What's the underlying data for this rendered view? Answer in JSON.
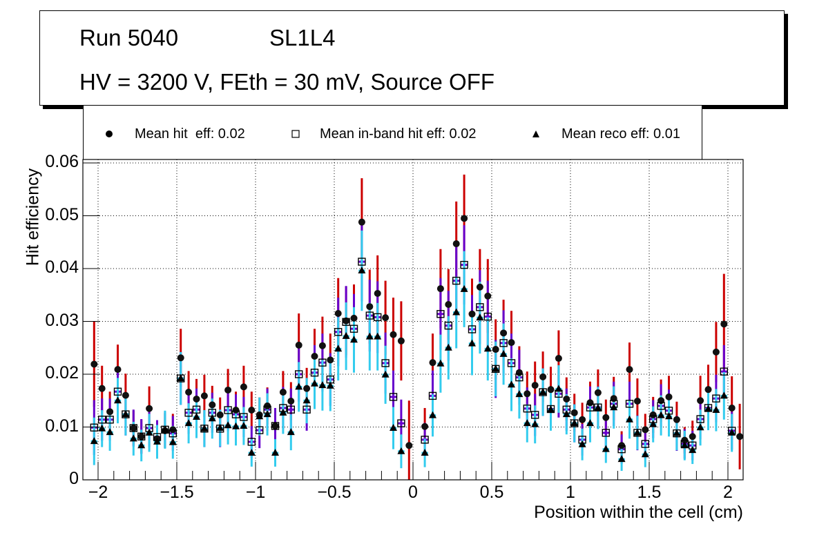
{
  "title_box": {
    "line1_left": "Run 5040",
    "line1_right": "SL1L4",
    "line2": "HV = 3200 V, FEth = 30 mV, Source OFF"
  },
  "legend": {
    "entries": [
      {
        "marker": "filled-circle",
        "label": "Mean hit  eff: 0.02"
      },
      {
        "marker": "open-square",
        "label": "Mean in-band hit eff: 0.02"
      },
      {
        "marker": "filled-triangle",
        "label": "Mean reco eff: 0.01"
      }
    ]
  },
  "colors": {
    "hit_error": "#cc0000",
    "inband_error": "#6600cc",
    "reco_error": "#33ccee",
    "marker": "#000000",
    "grid": "#000000"
  },
  "chart_data": {
    "type": "scatter",
    "title": "",
    "xlabel": "Position within the cell (cm)",
    "ylabel": "Hit efficiency",
    "xlim": [
      -2.1,
      2.1
    ],
    "ylim": [
      0,
      0.0605
    ],
    "grid": true,
    "legend_position": "top",
    "x_ticks": [
      -2,
      -1.5,
      -1,
      -0.5,
      0,
      0.5,
      1,
      1.5,
      2
    ],
    "x_tick_labels": [
      "−2",
      "−1.5",
      "−1",
      "−0.5",
      "0",
      "0.5",
      "1",
      "1.5",
      "2"
    ],
    "y_ticks": [
      0,
      0.01,
      0.02,
      0.03,
      0.04,
      0.05,
      0.06
    ],
    "y_tick_labels": [
      "0",
      "0.01",
      "0.02",
      "0.03",
      "0.04",
      "0.05",
      "0.06"
    ],
    "x": [
      -2.025,
      -1.975,
      -1.925,
      -1.875,
      -1.825,
      -1.775,
      -1.725,
      -1.675,
      -1.625,
      -1.575,
      -1.525,
      -1.475,
      -1.425,
      -1.375,
      -1.325,
      -1.275,
      -1.225,
      -1.175,
      -1.125,
      -1.075,
      -1.025,
      -0.975,
      -0.925,
      -0.875,
      -0.825,
      -0.775,
      -0.725,
      -0.675,
      -0.625,
      -0.575,
      -0.525,
      -0.475,
      -0.425,
      -0.375,
      -0.325,
      -0.275,
      -0.225,
      -0.175,
      -0.125,
      -0.075,
      -0.025,
      0.075,
      0.125,
      0.175,
      0.225,
      0.275,
      0.325,
      0.375,
      0.425,
      0.475,
      0.525,
      0.575,
      0.625,
      0.675,
      0.725,
      0.775,
      0.825,
      0.875,
      0.925,
      0.975,
      1.025,
      1.075,
      1.125,
      1.175,
      1.225,
      1.275,
      1.325,
      1.375,
      1.425,
      1.475,
      1.525,
      1.575,
      1.625,
      1.675,
      1.725,
      1.775,
      1.825,
      1.875,
      1.925,
      1.975,
      2.025,
      2.075
    ],
    "series": [
      {
        "name": "Mean hit  eff: 0.02",
        "marker": "filled-circle",
        "values": [
          0.0219,
          0.0173,
          0.0129,
          0.0209,
          0.016,
          0.0098,
          0.0082,
          0.0135,
          0.0078,
          0.0093,
          0.0095,
          0.0231,
          0.0166,
          0.0153,
          0.0159,
          0.0142,
          0.0123,
          0.017,
          0.0132,
          0.0176,
          0.0132,
          0.0123,
          0.014,
          0.0102,
          0.0166,
          0.0149,
          0.0255,
          0.0173,
          0.0234,
          0.0254,
          0.0227,
          0.0315,
          0.0301,
          0.0306,
          0.0488,
          0.0328,
          0.0353,
          0.0307,
          0.0275,
          0.0263,
          0.0065,
          0.0101,
          0.0222,
          0.0362,
          0.0332,
          0.0447,
          0.0495,
          0.0314,
          0.0365,
          0.0348,
          0.0247,
          0.0278,
          0.026,
          0.0203,
          0.0163,
          0.0179,
          0.0195,
          0.0171,
          0.023,
          0.0153,
          0.0127,
          0.0114,
          0.0146,
          0.0165,
          0.0118,
          0.0154,
          0.0065,
          0.0209,
          0.0149,
          0.0095,
          0.0123,
          0.015,
          0.0157,
          0.0114,
          0.0075,
          0.0082,
          0.015,
          0.0171,
          0.0242,
          0.0295,
          0.0136,
          0.0082
        ],
        "errors": [
          0.0081,
          0.0043,
          0.0038,
          0.0047,
          0.0041,
          0.0033,
          0.0032,
          0.0042,
          0.003,
          0.0033,
          0.003,
          0.0055,
          0.004,
          0.0038,
          0.004,
          0.0036,
          0.0033,
          0.004,
          0.0035,
          0.004,
          0.0035,
          0.0033,
          0.0035,
          0.003,
          0.004,
          0.0036,
          0.006,
          0.0039,
          0.0052,
          0.0055,
          0.005,
          0.0067,
          0.0065,
          0.0064,
          0.0083,
          0.007,
          0.0072,
          0.007,
          0.007,
          0.0075,
          0.0085,
          0.0035,
          0.0055,
          0.0075,
          0.0067,
          0.008,
          0.0083,
          0.0067,
          0.0072,
          0.007,
          0.0057,
          0.0063,
          0.006,
          0.005,
          0.0042,
          0.0045,
          0.0048,
          0.0043,
          0.0053,
          0.0041,
          0.0036,
          0.0032,
          0.004,
          0.0044,
          0.0034,
          0.0041,
          0.0027,
          0.0051,
          0.0043,
          0.003,
          0.0034,
          0.004,
          0.004,
          0.0034,
          0.0025,
          0.003,
          0.0047,
          0.0047,
          0.0057,
          0.0095,
          0.006,
          0.0062
        ]
      },
      {
        "name": "Mean in-band hit eff: 0.02",
        "marker": "open-square",
        "values": [
          0.0099,
          0.0114,
          0.0114,
          0.0167,
          0.0124,
          0.0098,
          0.0082,
          0.0098,
          0.0081,
          0.0095,
          0.0088,
          0.0192,
          0.0127,
          0.0133,
          0.0097,
          0.0127,
          0.0097,
          0.0132,
          0.0124,
          0.0119,
          0.0072,
          0.0094,
          0.0133,
          0.0102,
          0.0136,
          0.0133,
          0.02,
          0.0133,
          0.0203,
          0.0222,
          0.019,
          0.028,
          0.0299,
          0.0286,
          0.0413,
          0.0311,
          0.0308,
          0.0221,
          0.0157,
          0.0107,
          null,
          0.0076,
          0.0159,
          0.0314,
          0.0292,
          0.0377,
          0.0407,
          0.0285,
          0.0327,
          0.0309,
          0.021,
          0.0259,
          0.0221,
          0.0194,
          0.0135,
          0.0123,
          0.0166,
          0.0134,
          0.0163,
          0.0133,
          0.0107,
          0.0076,
          0.0137,
          0.0137,
          0.0089,
          0.0144,
          0.0058,
          0.0144,
          0.0089,
          0.0068,
          0.0115,
          0.014,
          0.0131,
          0.0088,
          0.0068,
          0.0065,
          0.0115,
          0.0136,
          0.0154,
          0.0205,
          0.0093,
          null
        ],
        "errors": [
          0.0052,
          0.004,
          0.004,
          0.0045,
          0.004,
          0.0035,
          0.0033,
          0.0036,
          0.0032,
          0.0034,
          0.0033,
          0.005,
          0.004,
          0.004,
          0.0035,
          0.0038,
          0.0035,
          0.004,
          0.0038,
          0.0038,
          0.003,
          0.0034,
          0.004,
          0.0034,
          0.004,
          0.004,
          0.0052,
          0.004,
          0.0052,
          0.0055,
          0.005,
          0.0065,
          0.0068,
          0.0066,
          0.0075,
          0.0068,
          0.0068,
          0.0058,
          0.005,
          0.0045,
          null,
          0.0032,
          0.0048,
          0.0068,
          0.0066,
          0.0072,
          0.0075,
          0.0065,
          0.007,
          0.0068,
          0.0055,
          0.0062,
          0.0056,
          0.0052,
          0.004,
          0.004,
          0.0045,
          0.004,
          0.0045,
          0.004,
          0.0036,
          0.003,
          0.004,
          0.004,
          0.0033,
          0.0042,
          0.0028,
          0.0042,
          0.0033,
          0.0028,
          0.0036,
          0.0041,
          0.004,
          0.0033,
          0.0028,
          0.0028,
          0.0038,
          0.004,
          0.0045,
          0.005,
          0.0036,
          null
        ]
      },
      {
        "name": "Mean reco eff: 0.01",
        "marker": "filled-triangle",
        "values": [
          0.0073,
          0.0097,
          0.009,
          0.015,
          0.0124,
          0.0078,
          0.0065,
          0.0089,
          0.0072,
          0.0095,
          0.0071,
          0.0192,
          0.0107,
          0.0119,
          0.0097,
          0.0116,
          0.0098,
          0.0103,
          0.0101,
          0.0102,
          0.0051,
          0.012,
          0.0124,
          0.0051,
          0.0127,
          0.009,
          0.0176,
          0.015,
          0.0182,
          0.0179,
          0.0178,
          0.0248,
          0.0272,
          0.0265,
          0.0396,
          0.0271,
          0.0271,
          0.0199,
          0.0098,
          0.0054,
          null,
          0.0051,
          0.0122,
          0.022,
          0.025,
          0.0317,
          0.0361,
          0.0258,
          0.0307,
          0.0248,
          0.021,
          0.0238,
          0.018,
          0.0162,
          0.0107,
          0.0105,
          0.0166,
          0.0133,
          0.0172,
          0.0124,
          0.0107,
          0.0067,
          0.0107,
          0.0136,
          0.0058,
          0.0137,
          0.0039,
          0.0114,
          0.0089,
          0.0048,
          0.0105,
          0.0122,
          0.012,
          0.0088,
          0.0065,
          0.0056,
          0.0099,
          0.0134,
          0.0132,
          0.0159,
          0.0089,
          null
        ],
        "errors": [
          0.0045,
          0.0035,
          0.0035,
          0.0043,
          0.004,
          0.0032,
          0.003,
          0.0036,
          0.0032,
          0.0036,
          0.0031,
          0.005,
          0.0038,
          0.004,
          0.0035,
          0.0038,
          0.0035,
          0.0036,
          0.0036,
          0.0036,
          0.0026,
          0.0036,
          0.004,
          0.0026,
          0.004,
          0.0034,
          0.0047,
          0.0043,
          0.0048,
          0.0048,
          0.0048,
          0.006,
          0.0064,
          0.0062,
          0.0076,
          0.0064,
          0.0064,
          0.0055,
          0.004,
          0.0032,
          null,
          0.0027,
          0.004,
          0.0055,
          0.006,
          0.0068,
          0.0072,
          0.006,
          0.0068,
          0.006,
          0.0052,
          0.0058,
          0.005,
          0.0046,
          0.0036,
          0.0036,
          0.0045,
          0.004,
          0.0045,
          0.0038,
          0.0036,
          0.003,
          0.0036,
          0.004,
          0.0026,
          0.004,
          0.0022,
          0.0036,
          0.0032,
          0.0024,
          0.0034,
          0.0038,
          0.0038,
          0.0032,
          0.0028,
          0.0026,
          0.0034,
          0.004,
          0.004,
          0.0045,
          0.0036,
          null
        ]
      }
    ]
  }
}
